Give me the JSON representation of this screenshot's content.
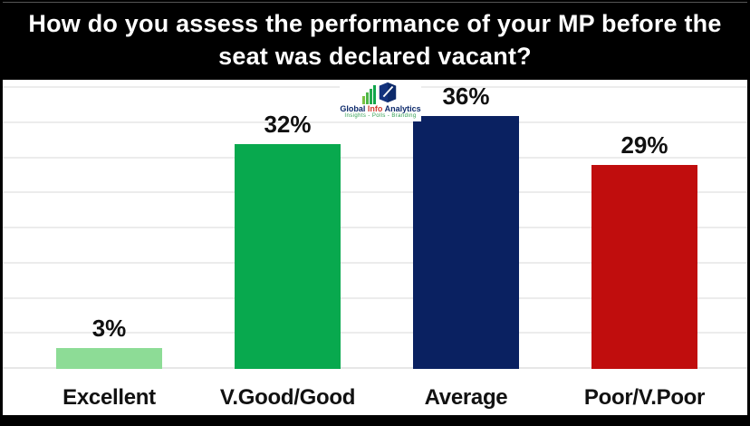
{
  "title": {
    "text": "How do you assess the performance of your MP before the seat was declared vacant?"
  },
  "logo": {
    "word1": "Global",
    "word2": "Info",
    "word3": "Analytics",
    "tagline": "Insights - Polls - Branding",
    "brand_navy": "#0d2a6b",
    "brand_red": "#d23b2f",
    "brand_green": "#27aa4d"
  },
  "chart_data": {
    "type": "bar",
    "title": "How do you assess the performance of your MP before the seat was declared vacant?",
    "categories": [
      "Excellent",
      "V.Good/Good",
      "Average",
      "Poor/V.Poor"
    ],
    "values": [
      3,
      32,
      36,
      29
    ],
    "value_labels": [
      "3%",
      "32%",
      "36%",
      "29%"
    ],
    "bar_colors": [
      "#8ddc96",
      "#08a94e",
      "#0a2161",
      "#c00d0d"
    ],
    "ylim": [
      0,
      40
    ],
    "gridline_step": 5,
    "grid": true,
    "legend": false,
    "xlabel": "",
    "ylabel": ""
  },
  "colors": {
    "background": "#000000",
    "chart_background": "#ffffff",
    "title_text": "#ffffff",
    "gridline": "#ececec",
    "label_text": "#111111"
  }
}
